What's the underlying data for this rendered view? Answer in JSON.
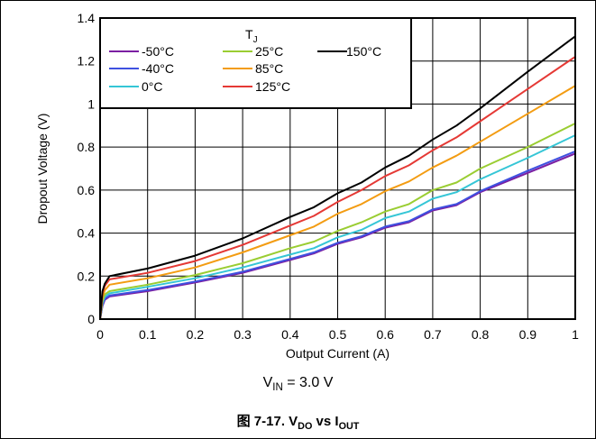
{
  "chart_data": {
    "type": "line",
    "title": "",
    "xlabel": "Output Current (A)",
    "ylabel": "Dropout Voltage (V)",
    "xlim": [
      0,
      1
    ],
    "ylim": [
      0,
      1.4
    ],
    "x_ticks": [
      "0",
      "0.1",
      "0.2",
      "0.3",
      "0.4",
      "0.5",
      "0.6",
      "0.7",
      "0.8",
      "0.9",
      "1"
    ],
    "y_ticks": [
      "0",
      "0.2",
      "0.4",
      "0.6",
      "0.8",
      "1",
      "1.2",
      "1.4"
    ],
    "grid": true,
    "legend_title": "T",
    "legend_title_sub": "J",
    "legend_placement": "top-left",
    "series": [
      {
        "name": "-50°C",
        "color": "#7b1fa2",
        "x": [
          0,
          0.005,
          0.01,
          0.02,
          0.1,
          0.2,
          0.3,
          0.4,
          0.45,
          0.5,
          0.55,
          0.6,
          0.65,
          0.7,
          0.75,
          0.8,
          0.9,
          1.0
        ],
        "y": [
          0.0,
          0.06,
          0.09,
          0.105,
          0.13,
          0.17,
          0.215,
          0.275,
          0.305,
          0.35,
          0.38,
          0.425,
          0.45,
          0.505,
          0.53,
          0.59,
          0.68,
          0.77
        ]
      },
      {
        "name": "-40°C",
        "color": "#3f51e0",
        "x": [
          0,
          0.005,
          0.01,
          0.02,
          0.1,
          0.2,
          0.3,
          0.4,
          0.45,
          0.5,
          0.55,
          0.6,
          0.65,
          0.7,
          0.75,
          0.8,
          0.9,
          1.0
        ],
        "y": [
          0.0,
          0.065,
          0.095,
          0.11,
          0.135,
          0.175,
          0.22,
          0.28,
          0.31,
          0.355,
          0.385,
          0.43,
          0.455,
          0.51,
          0.535,
          0.595,
          0.69,
          0.78
        ]
      },
      {
        "name": "0°C",
        "color": "#35c6d6",
        "x": [
          0,
          0.005,
          0.01,
          0.02,
          0.1,
          0.2,
          0.3,
          0.4,
          0.45,
          0.5,
          0.55,
          0.6,
          0.65,
          0.7,
          0.75,
          0.8,
          0.9,
          1.0
        ],
        "y": [
          0.0,
          0.075,
          0.105,
          0.12,
          0.15,
          0.19,
          0.24,
          0.3,
          0.33,
          0.38,
          0.415,
          0.47,
          0.5,
          0.56,
          0.59,
          0.65,
          0.75,
          0.855
        ]
      },
      {
        "name": "25°C",
        "color": "#9acd32",
        "x": [
          0,
          0.005,
          0.01,
          0.02,
          0.1,
          0.2,
          0.3,
          0.4,
          0.45,
          0.5,
          0.55,
          0.6,
          0.65,
          0.7,
          0.75,
          0.8,
          0.9,
          1.0
        ],
        "y": [
          0.0,
          0.085,
          0.115,
          0.13,
          0.16,
          0.205,
          0.26,
          0.33,
          0.36,
          0.41,
          0.45,
          0.5,
          0.535,
          0.6,
          0.635,
          0.7,
          0.8,
          0.91
        ]
      },
      {
        "name": "85°C",
        "color": "#f39c12",
        "x": [
          0,
          0.005,
          0.01,
          0.02,
          0.1,
          0.2,
          0.3,
          0.4,
          0.45,
          0.5,
          0.55,
          0.6,
          0.65,
          0.7,
          0.75,
          0.8,
          0.9,
          1.0
        ],
        "y": [
          0.0,
          0.1,
          0.135,
          0.16,
          0.19,
          0.24,
          0.31,
          0.39,
          0.43,
          0.49,
          0.535,
          0.595,
          0.64,
          0.705,
          0.76,
          0.825,
          0.955,
          1.085
        ]
      },
      {
        "name": "125°C",
        "color": "#e53935",
        "x": [
          0,
          0.005,
          0.01,
          0.02,
          0.1,
          0.2,
          0.3,
          0.4,
          0.45,
          0.5,
          0.55,
          0.6,
          0.65,
          0.7,
          0.75,
          0.8,
          0.9,
          1.0
        ],
        "y": [
          0.0,
          0.12,
          0.155,
          0.185,
          0.215,
          0.27,
          0.345,
          0.435,
          0.48,
          0.545,
          0.6,
          0.665,
          0.715,
          0.785,
          0.845,
          0.92,
          1.07,
          1.22
        ]
      },
      {
        "name": "150°C",
        "color": "#000000",
        "x": [
          0,
          0.005,
          0.01,
          0.02,
          0.1,
          0.2,
          0.3,
          0.4,
          0.45,
          0.5,
          0.55,
          0.6,
          0.65,
          0.7,
          0.75,
          0.8,
          0.9,
          1.0
        ],
        "y": [
          0.0,
          0.13,
          0.165,
          0.2,
          0.235,
          0.295,
          0.375,
          0.475,
          0.52,
          0.585,
          0.635,
          0.705,
          0.76,
          0.835,
          0.9,
          0.98,
          1.15,
          1.315
        ]
      }
    ]
  },
  "caption": {
    "vin_prefix": "V",
    "vin_sub": "IN",
    "vin_value": " = 3.0 V",
    "figure_prefix": "图 7-17. V",
    "figure_sub1": "DO",
    "figure_mid": " vs I",
    "figure_sub2": "OUT"
  }
}
